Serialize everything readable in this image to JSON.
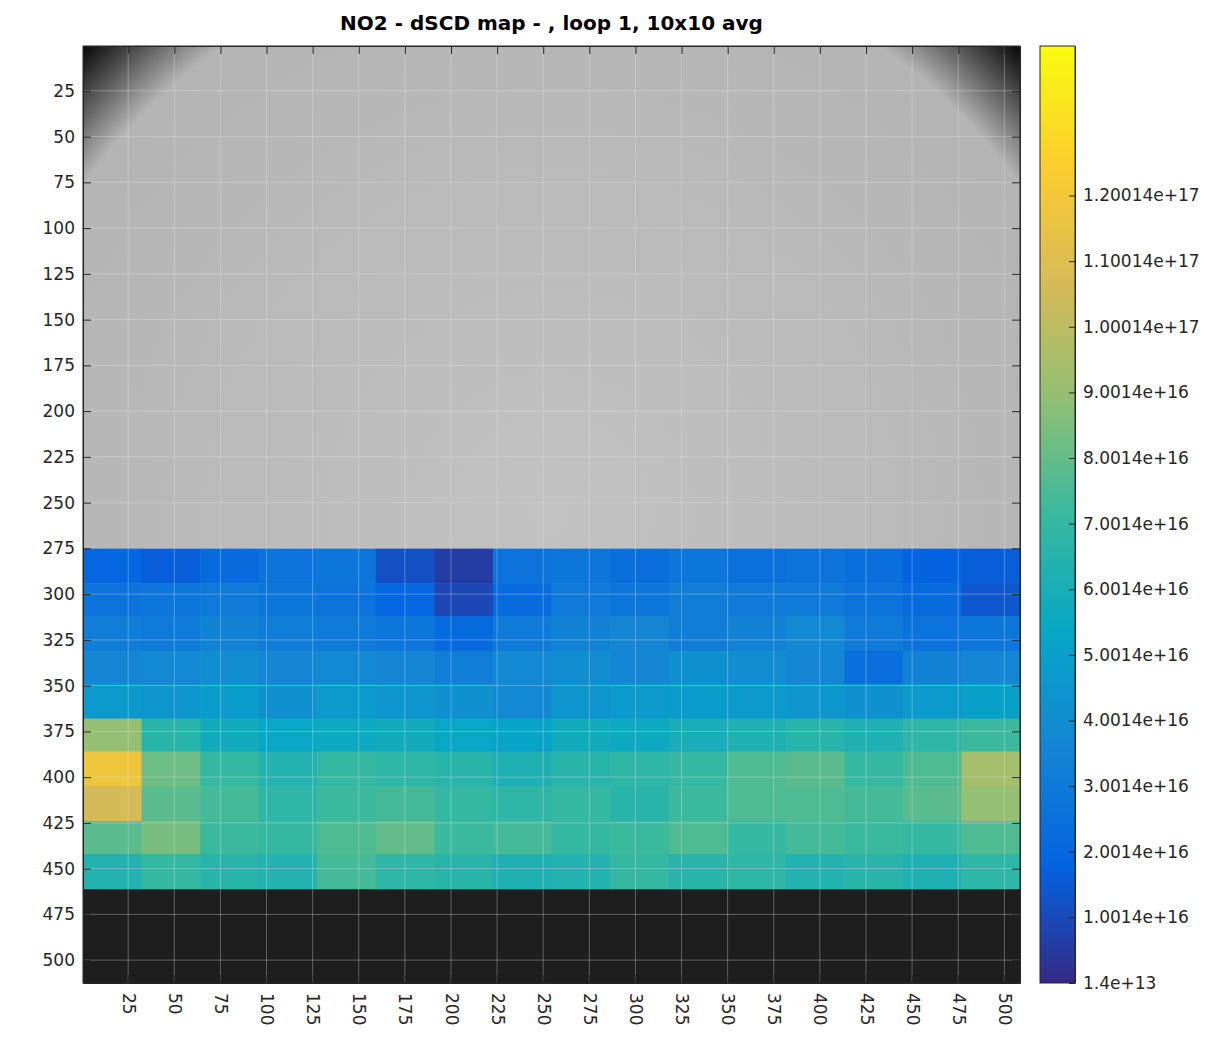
{
  "chart_data": {
    "type": "heatmap",
    "title": "NO2 - dSCD map - , loop 1, 10x10 avg",
    "xlim": [
      0.5,
      508.5
    ],
    "ylim": [
      0.5,
      512.5
    ],
    "xticks": [
      25,
      50,
      75,
      100,
      125,
      150,
      175,
      200,
      225,
      250,
      275,
      300,
      325,
      350,
      375,
      400,
      425,
      450,
      475,
      500
    ],
    "yticks": [
      25,
      50,
      75,
      100,
      125,
      150,
      175,
      200,
      225,
      250,
      275,
      300,
      325,
      350,
      375,
      400,
      425,
      450,
      475,
      500
    ],
    "grid": true,
    "x_edges": [
      0.5,
      32.25,
      64,
      95.75,
      127.5,
      159.25,
      191,
      222.75,
      254.5,
      286.25,
      318,
      349.75,
      381.5,
      413.25,
      445,
      476.75,
      508.5
    ],
    "y_edges": [
      275,
      294,
      312,
      331,
      349,
      368,
      386,
      405,
      424,
      442,
      461
    ],
    "z": [
      [
        2e+16,
        1.6e+16,
        2.2e+16,
        2.6e+16,
        2.8e+16,
        1.2e+16,
        6000000000000000.0,
        2.6e+16,
        2.8e+16,
        2.4e+16,
        2.8e+16,
        2.5e+16,
        2.6e+16,
        2.4e+16,
        1.8e+16,
        1.6e+16
      ],
      [
        2.6e+16,
        2.8e+16,
        3e+16,
        2.8e+16,
        2.6e+16,
        2e+16,
        9000000000000000.0,
        2.2e+16,
        3e+16,
        2.8e+16,
        3.2e+16,
        3e+16,
        3e+16,
        2.6e+16,
        2.2e+16,
        1.4e+16
      ],
      [
        3.2e+16,
        3e+16,
        3.4e+16,
        3.2e+16,
        3e+16,
        2.8e+16,
        2.2e+16,
        3e+16,
        3.4e+16,
        3.6e+16,
        3.2e+16,
        3.4e+16,
        3.8e+16,
        3e+16,
        2.6e+16,
        2.8e+16
      ],
      [
        3.6e+16,
        3.8e+16,
        4e+16,
        3.6e+16,
        3.8e+16,
        3.6e+16,
        3.2e+16,
        3.8e+16,
        4e+16,
        3.6e+16,
        4.2e+16,
        4e+16,
        3.6e+16,
        2.4e+16,
        3.4e+16,
        3.6e+16
      ],
      [
        4.6e+16,
        4.4e+16,
        4.8e+16,
        4.2e+16,
        4.6e+16,
        4.4e+16,
        4.2e+16,
        3.8e+16,
        4.4e+16,
        4.6e+16,
        4.8e+16,
        4.6e+16,
        4.4e+16,
        4.2e+16,
        4.6e+16,
        5e+16
      ],
      [
        9e+16,
        6.6e+16,
        5.8e+16,
        5.4e+16,
        5.6e+16,
        5.8e+16,
        5.4e+16,
        5.2e+16,
        5.8e+16,
        5.6e+16,
        6e+16,
        6.2e+16,
        6.6e+16,
        6.2e+16,
        6.8e+16,
        7.2e+16
      ],
      [
        1.18e+17,
        8.2e+16,
        7e+16,
        6.4e+16,
        7e+16,
        6.8e+16,
        6.6e+16,
        6.2e+16,
        6.6e+16,
        6.8e+16,
        7e+16,
        7.6e+16,
        7.8e+16,
        7e+16,
        7.6e+16,
        9.4e+16
      ],
      [
        1.06e+17,
        7.8e+16,
        7.4e+16,
        6.8e+16,
        7.2e+16,
        7.4e+16,
        7e+16,
        6.8e+16,
        7e+16,
        6.6e+16,
        7.2e+16,
        7.6e+16,
        7.6e+16,
        7.4e+16,
        7.8e+16,
        9e+16
      ],
      [
        7.8e+16,
        8.4e+16,
        7.2e+16,
        7e+16,
        7.6e+16,
        8e+16,
        7.2e+16,
        7.4e+16,
        7e+16,
        7.2e+16,
        7.6e+16,
        7e+16,
        7.4e+16,
        7.2e+16,
        7e+16,
        7.6e+16
      ],
      [
        6.4e+16,
        7e+16,
        6.6e+16,
        6.4e+16,
        7.4e+16,
        6.8e+16,
        6.6e+16,
        6.2e+16,
        6.4e+16,
        7e+16,
        6.6e+16,
        6.8e+16,
        6.4e+16,
        6.6e+16,
        6.2e+16,
        6.8e+16
      ]
    ],
    "colorbar_range": [
      14000000000000.0,
      1.428e+17
    ],
    "colorbar_ticks": [
      {
        "value": 14000000000000.0,
        "label": "1.4e+13"
      },
      {
        "value": 1.0014e+16,
        "label": "1.0014e+16"
      },
      {
        "value": 2.0014e+16,
        "label": "2.0014e+16"
      },
      {
        "value": 3.0014e+16,
        "label": "3.0014e+16"
      },
      {
        "value": 4.0014e+16,
        "label": "4.0014e+16"
      },
      {
        "value": 5.0014e+16,
        "label": "5.0014e+16"
      },
      {
        "value": 6.0014e+16,
        "label": "6.0014e+16"
      },
      {
        "value": 7.0014e+16,
        "label": "7.0014e+16"
      },
      {
        "value": 8.0014e+16,
        "label": "8.0014e+16"
      },
      {
        "value": 9.0014e+16,
        "label": "9.0014e+16"
      },
      {
        "value": 1.00014e+17,
        "label": "1.00014e+17"
      },
      {
        "value": 1.10014e+17,
        "label": "1.10014e+17"
      },
      {
        "value": 1.20014e+17,
        "label": "1.20014e+17"
      }
    ]
  }
}
